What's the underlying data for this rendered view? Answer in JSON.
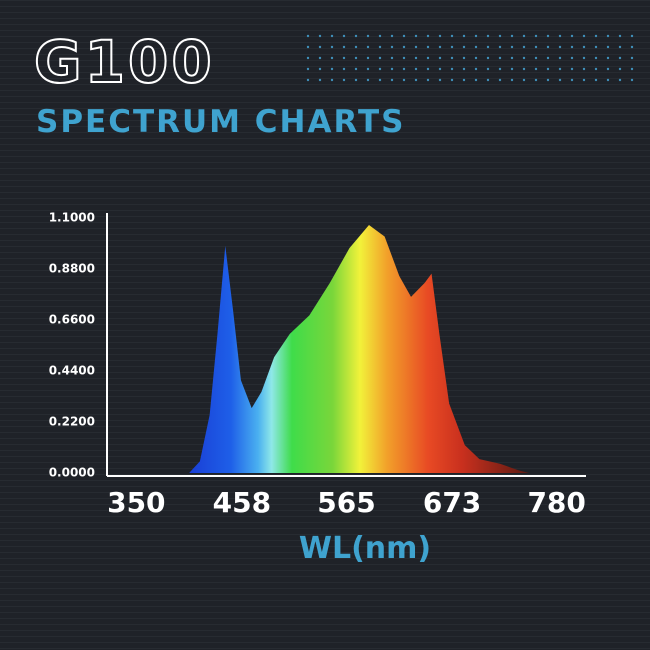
{
  "header": {
    "title": "G100",
    "subtitle": "SPECTRUM CHARTS"
  },
  "chart_data": {
    "type": "area",
    "xlabel": "WL(nm)",
    "x": [
      404,
      415,
      425,
      433,
      441,
      449,
      457,
      468,
      478,
      491,
      507,
      527,
      548,
      568,
      588,
      604,
      619,
      631,
      645,
      652,
      660,
      670,
      686,
      701,
      722,
      742,
      752
    ],
    "values": [
      0,
      0.05,
      0.25,
      0.6,
      0.98,
      0.7,
      0.4,
      0.28,
      0.35,
      0.5,
      0.6,
      0.68,
      0.82,
      0.97,
      1.07,
      1.02,
      0.85,
      0.76,
      0.82,
      0.86,
      0.6,
      0.3,
      0.12,
      0.06,
      0.04,
      0.01,
      0
    ],
    "xlim": [
      320,
      810
    ],
    "xticks": [
      350,
      458,
      565,
      673,
      780
    ],
    "ylim": [
      0,
      1.1
    ],
    "yticks": [
      {
        "value": 0,
        "label": "0.0000"
      },
      {
        "value": 0.22,
        "label": "0.2200"
      },
      {
        "value": 0.44,
        "label": "0.4400"
      },
      {
        "value": 0.66,
        "label": "0.6600"
      },
      {
        "value": 0.88,
        "label": "0.8800"
      },
      {
        "value": 1.1,
        "label": "1.1000"
      }
    ]
  }
}
